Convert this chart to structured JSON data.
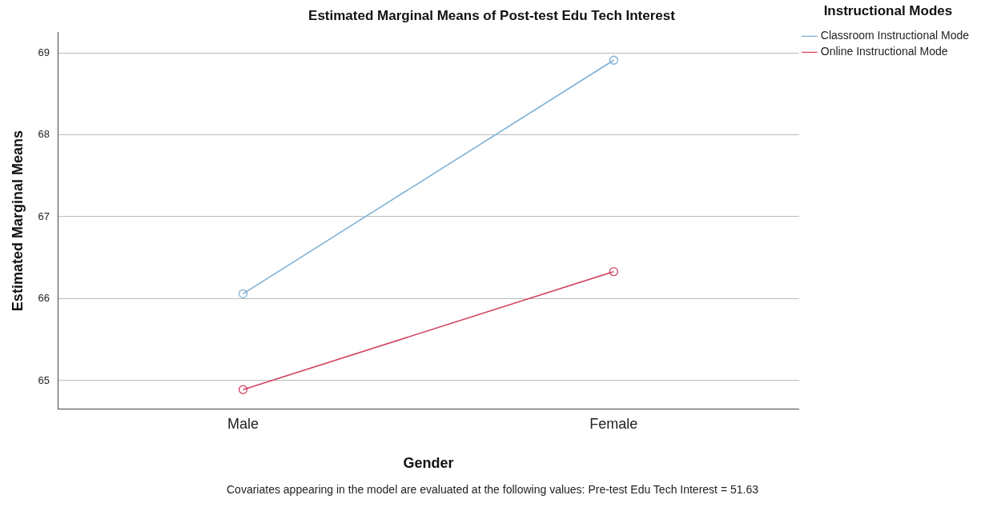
{
  "chart_data": {
    "type": "line",
    "title": "Estimated Marginal Means of Post-test Edu Tech Interest",
    "xlabel": "Gender",
    "ylabel": "Estimated Marginal Means",
    "legend_title": "Instructional Modes",
    "categories": [
      "Male",
      "Female"
    ],
    "series": [
      {
        "name": "Classroom Instructional Mode",
        "color": "#7bafd4",
        "values": [
          66.06,
          68.91
        ]
      },
      {
        "name": "Online Instructional Mode",
        "color": "#d1415f",
        "values": [
          64.89,
          66.33
        ]
      }
    ],
    "ylim": [
      64.65,
      69.25
    ],
    "yticks": [
      65,
      66,
      67,
      68,
      69
    ],
    "grid": "y",
    "legend": "top right",
    "marker": "circle",
    "line_style": "solid",
    "annotations": [
      "Covariates appearing in the model are evaluated at the following values: Pre-test Edu Tech Interest = 51.63"
    ]
  }
}
